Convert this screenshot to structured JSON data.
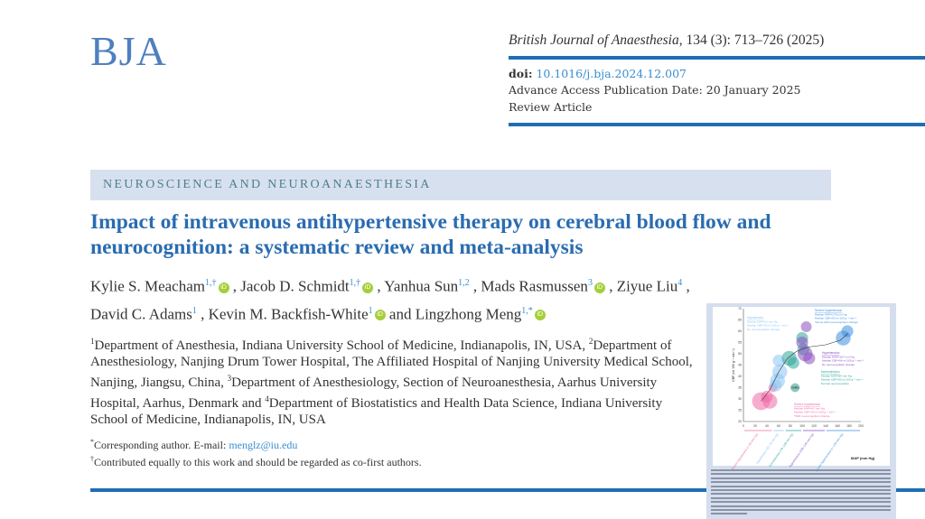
{
  "header": {
    "logo": "BJA",
    "journal_name": "British Journal of Anaesthesia",
    "journal_citation": ", 134 (3): 713–726 (2025)",
    "doi_label": "doi:",
    "doi": "10.1016/j.bja.2024.12.007",
    "publication_date": "Advance Access Publication Date: 20 January 2025",
    "article_type": "Review Article"
  },
  "section": "NEUROSCIENCE AND NEUROANAESTHESIA",
  "title": "Impact of intravenous antihypertensive therapy on cerebral blood flow and neurocognition: a systematic review and meta-analysis",
  "authors": [
    {
      "name": "Kylie S. Meacham",
      "sup": "1,†",
      "orcid": true,
      "sep": ", "
    },
    {
      "name": "Jacob D. Schmidt",
      "sup": "1,†",
      "orcid": true,
      "sep": ", "
    },
    {
      "name": "Yanhua Sun",
      "sup": "1,2",
      "orcid": false,
      "sep": ", "
    },
    {
      "name": "Mads Rasmussen",
      "sup": "3",
      "orcid": true,
      "sep": ", "
    },
    {
      "name": "Ziyue Liu",
      "sup": "4",
      "orcid": false,
      "sep": ", "
    },
    {
      "name": "David C. Adams",
      "sup": "1",
      "orcid": false,
      "sep": ", "
    },
    {
      "name": "Kevin M. Backfish-White",
      "sup": "1",
      "orcid": true,
      "sep": " and "
    },
    {
      "name": "Lingzhong Meng",
      "sup": "1,*",
      "orcid": true,
      "sep": ""
    }
  ],
  "orcid_label": "iD",
  "affiliations": [
    {
      "sup": "1",
      "text": "Department of Anesthesia, Indiana University School of Medicine, Indianapolis, IN, USA, "
    },
    {
      "sup": "2",
      "text": "Department of Anesthesiology, Nanjing Drum Tower Hospital, The Affiliated Hospital of Nanjing University Medical School, Nanjing, Jiangsu, China, "
    },
    {
      "sup": "3",
      "text": "Department of Anesthesiology, Section of Neuroanesthesia, Aarhus University Hospital, Aarhus, Denmark and "
    },
    {
      "sup": "4",
      "text": "Department of Biostatistics and Health Data Science, Indiana University School of Medicine, Indianapolis, IN, USA"
    }
  ],
  "footnotes": {
    "corresponding_sup": "*",
    "corresponding_text": "Corresponding author. E-mail: ",
    "email": "menglz@iu.edu",
    "equal_sup": "†",
    "equal_text": "Contributed equally to this work and should be regarded as co-first authors."
  },
  "colors": {
    "accent": "#1f6db5",
    "title": "#2a6cb0",
    "banner": "#d7e0ef",
    "link": "#3a8ed0",
    "orcid": "#a6ce39"
  },
  "chart_data": {
    "type": "scatter",
    "subtype": "bubble",
    "xlabel": "MAP (mm Hg)",
    "ylabel": "CBF (ml 100 g⁻¹ min⁻¹)",
    "xlim": [
      0,
      200
    ],
    "ylim": [
      20,
      70
    ],
    "xticks": [
      0,
      20,
      40,
      60,
      80,
      100,
      120,
      140,
      160,
      180,
      200
    ],
    "yticks": [
      20,
      25,
      30,
      35,
      40,
      45,
      50,
      55,
      60,
      65,
      70
    ],
    "grid": false,
    "series": [
      {
        "name": "Severe hypotension",
        "color": "#f06aa8",
        "points": [
          [
            30,
            29,
            3
          ],
          [
            45,
            29,
            2.5
          ],
          [
            40,
            31,
            2
          ],
          [
            50,
            35,
            1.5
          ]
        ]
      },
      {
        "name": "Hypotension",
        "color": "#8cc4f2",
        "points": [
          [
            60,
            47,
            2
          ],
          [
            62,
            42,
            2.5
          ],
          [
            58,
            38,
            2.5
          ],
          [
            55,
            36,
            2
          ]
        ]
      },
      {
        "name": "Normotension",
        "color": "#2ea59a",
        "points": [
          [
            78,
            48,
            2.5
          ],
          [
            85,
            46,
            2
          ],
          [
            100,
            57,
            2
          ],
          [
            102,
            52,
            2
          ]
        ]
      },
      {
        "name": "Hypertension",
        "color": "#8a4fc0",
        "points": [
          [
            107,
            62,
            1.8
          ],
          [
            100,
            55,
            2
          ],
          [
            105,
            50,
            2.5
          ],
          [
            112,
            48,
            2
          ]
        ]
      },
      {
        "name": "Severe hypertension",
        "color": "#3d8fe0",
        "points": [
          [
            177,
            60,
            2
          ],
          [
            170,
            57,
            2.5
          ]
        ]
      },
      {
        "name": "Outlier",
        "color": "#2e9a8c",
        "points": [
          [
            88,
            35,
            1.5
          ]
        ]
      }
    ],
    "trend_line": [
      [
        30,
        29
      ],
      [
        45,
        34
      ],
      [
        60,
        42
      ],
      [
        75,
        48
      ],
      [
        90,
        51
      ],
      [
        110,
        53
      ],
      [
        140,
        54
      ],
      [
        165,
        56
      ],
      [
        178,
        59
      ]
    ],
    "annotations": [
      {
        "label": "Severe hypertension",
        "lines": [
          "Median MAP=176 mm Hg",
          "Median CBF=59 ml 100 g⁻¹ min⁻¹",
          "*Some with neurocognition change"
        ],
        "color": "#3d8fe0"
      },
      {
        "label": "Hypotension",
        "lines": [
          "Median MAP=61 mm Hg",
          "Median CBF=42 ml 100 g⁻¹ min⁻¹",
          "No neurocognition change"
        ],
        "color": "#8cc4f2"
      },
      {
        "label": "Hypertension",
        "lines": [
          "Median MAP=107 mm Hg",
          "Median CBF=54 ml 100 g⁻¹ min⁻¹",
          "No neurocognition change"
        ],
        "color": "#8a4fc0"
      },
      {
        "label": "Normotension",
        "lines": [
          "Median MAP=84 mm Hg",
          "Median CBF=50 ml 100 g⁻¹ min⁻¹",
          "Normal neurocognition"
        ],
        "color": "#2ea59a"
      },
      {
        "label": "Severe hypotension",
        "lines": [
          "Median MAP=41 mm Hg",
          "Median CBF=30 ml 100 g⁻¹ min⁻¹",
          "*With neurocognition change"
        ],
        "color": "#f06aa8"
      },
      {
        "label": "Outlier",
        "lines": [],
        "color": "#333333"
      }
    ],
    "ranges": [
      {
        "label": "Severe hypotension (< 50 mm Hg)",
        "from": 0,
        "to": 50,
        "color": "#f06aa8"
      },
      {
        "label": "Hypotension (50–70 mm Hg)",
        "from": 50,
        "to": 70,
        "color": "#8cc4f2"
      },
      {
        "label": "Normotension (70–100 mm Hg)",
        "from": 70,
        "to": 100,
        "color": "#2ea59a"
      },
      {
        "label": "Hypertension (100–140 mm Hg)",
        "from": 100,
        "to": 140,
        "color": "#8a4fc0"
      },
      {
        "label": "Severe hypertension (> 140 mm Hg)",
        "from": 140,
        "to": 200,
        "color": "#3d8fe0"
      }
    ]
  }
}
